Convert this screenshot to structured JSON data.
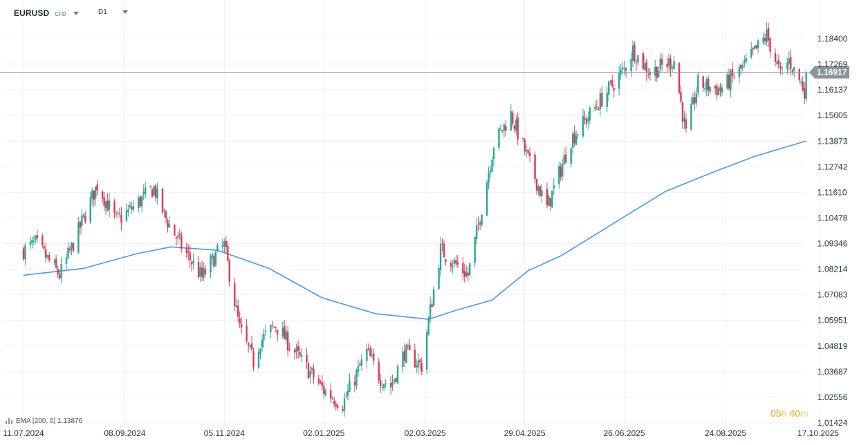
{
  "header": {
    "symbol": "EURUSD",
    "instrument_type": "CFD",
    "timeframe": "D1"
  },
  "indicator": {
    "label": "EMA [200, 0] 1.13876",
    "icon": "bar-chart-icon"
  },
  "countdown": {
    "hours": "05",
    "h_unit": "h",
    "minutes": "40",
    "m_unit": "m"
  },
  "colors": {
    "bull": "#26a69a",
    "bear": "#e0394e",
    "ema": "#3f9cf5",
    "price_line": "#8a949c",
    "price_label_bg": "#8a949c",
    "grid": "#eef0f3",
    "countdown": "#f0a020"
  },
  "chart_data": {
    "type": "candlestick",
    "x_axis": {
      "tick_labels": [
        "11.07.2024",
        "08.09.2024",
        "05.11.2024",
        "02.01.2025",
        "02.03.2025",
        "29.04.2025",
        "26.06.2025",
        "24.08.2025",
        "17.10.2025"
      ]
    },
    "y_axis": {
      "position": "right",
      "tick_labels": [
        "1.18400",
        "1.17269",
        "1.16137",
        "1.15005",
        "1.13873",
        "1.12742",
        "1.11610",
        "1.10478",
        "1.09346",
        "1.08214",
        "1.07083",
        "1.05951",
        "1.04819",
        "1.03687",
        "1.02556",
        "1.01424"
      ],
      "range": [
        1.01,
        1.194
      ]
    },
    "current_price": {
      "value": 1.16917,
      "label": "1.16917"
    },
    "grid": true,
    "price_waypoints": [
      [
        "2024-07-11",
        1.0905
      ],
      [
        "2024-07-18",
        1.0935
      ],
      [
        "2024-08-01",
        1.0795
      ],
      [
        "2024-08-08",
        1.0915
      ],
      [
        "2024-08-23",
        1.1195
      ],
      [
        "2024-09-03",
        1.1035
      ],
      [
        "2024-09-10",
        1.1075
      ],
      [
        "2024-09-25",
        1.118
      ],
      [
        "2024-10-01",
        1.106
      ],
      [
        "2024-10-10",
        1.0935
      ],
      [
        "2024-10-23",
        1.0785
      ],
      [
        "2024-11-01",
        1.0895
      ],
      [
        "2024-11-05",
        1.0925
      ],
      [
        "2024-11-14",
        1.0555
      ],
      [
        "2024-11-22",
        1.0415
      ],
      [
        "2024-11-26",
        1.0505
      ],
      [
        "2024-12-05",
        1.0575
      ],
      [
        "2024-12-18",
        1.0435
      ],
      [
        "2025-01-02",
        1.0285
      ],
      [
        "2025-01-13",
        1.0225
      ],
      [
        "2025-01-27",
        1.0455
      ],
      [
        "2025-02-04",
        1.034
      ],
      [
        "2025-02-10",
        1.0305
      ],
      [
        "2025-02-18",
        1.0455
      ],
      [
        "2025-02-28",
        1.0395
      ],
      [
        "2025-03-04",
        1.0595
      ],
      [
        "2025-03-11",
        1.0905
      ],
      [
        "2025-03-27",
        1.0795
      ],
      [
        "2025-04-03",
        1.1055
      ],
      [
        "2025-04-11",
        1.1375
      ],
      [
        "2025-04-21",
        1.1505
      ],
      [
        "2025-04-30",
        1.1325
      ],
      [
        "2025-05-12",
        1.109
      ],
      [
        "2025-05-26",
        1.1395
      ],
      [
        "2025-06-12",
        1.1565
      ],
      [
        "2025-06-26",
        1.1705
      ],
      [
        "2025-07-01",
        1.179
      ],
      [
        "2025-07-11",
        1.169
      ],
      [
        "2025-07-25",
        1.1745
      ],
      [
        "2025-08-01",
        1.1415
      ],
      [
        "2025-08-08",
        1.164
      ],
      [
        "2025-08-21",
        1.1615
      ],
      [
        "2025-09-03",
        1.171
      ],
      [
        "2025-09-17",
        1.1855
      ],
      [
        "2025-09-25",
        1.168
      ],
      [
        "2025-09-30",
        1.1745
      ],
      [
        "2025-10-03",
        1.17
      ],
      [
        "2025-10-09",
        1.1615
      ],
      [
        "2025-10-10",
        1.1692
      ]
    ],
    "ema_200": [
      [
        "2024-07-11",
        1.0795
      ],
      [
        "2024-08-15",
        1.0825
      ],
      [
        "2024-09-15",
        1.089
      ],
      [
        "2024-10-05",
        1.092
      ],
      [
        "2024-11-01",
        1.0905
      ],
      [
        "2024-12-01",
        1.0825
      ],
      [
        "2025-01-01",
        1.0695
      ],
      [
        "2025-02-01",
        1.0625
      ],
      [
        "2025-03-04",
        1.06
      ],
      [
        "2025-03-20",
        1.064
      ],
      [
        "2025-04-10",
        1.0685
      ],
      [
        "2025-05-01",
        1.0815
      ],
      [
        "2025-05-20",
        1.088
      ],
      [
        "2025-06-20",
        1.1025
      ],
      [
        "2025-07-20",
        1.1165
      ],
      [
        "2025-08-15",
        1.1245
      ],
      [
        "2025-09-10",
        1.132
      ],
      [
        "2025-10-10",
        1.1388
      ]
    ]
  }
}
